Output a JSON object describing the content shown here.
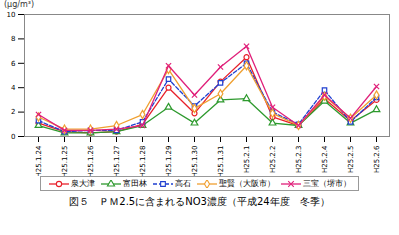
{
  "chart_data": {
    "type": "line",
    "title": "図５　ＰＭ2.5に含まれるNO3濃度（平成24年度　冬季）",
    "y_label": "(μg/m³)",
    "categories": [
      "H25.1.24",
      "H25.1.25",
      "H25.1.26",
      "H25.1.27",
      "H25.1.28",
      "H25.1.29",
      "H25.1.30",
      "H25.1.31",
      "H25.2.1",
      "H25.2.2",
      "H25.2.3",
      "H25.2.4",
      "H25.2.5",
      "H25.2.6"
    ],
    "series": [
      {
        "name": "泉大津",
        "color": "#e8202a",
        "marker": "circle",
        "line_style": "solid",
        "values": [
          1.1,
          0.4,
          0.3,
          0.4,
          1.0,
          4.0,
          1.9,
          4.5,
          6.5,
          1.6,
          0.9,
          3.1,
          1.3,
          3.0
        ]
      },
      {
        "name": "富田林",
        "color": "#2e9a2e",
        "marker": "triangle",
        "line_style": "solid",
        "values": [
          0.9,
          0.3,
          0.3,
          0.4,
          0.9,
          2.4,
          1.1,
          3.0,
          3.1,
          1.1,
          0.9,
          2.9,
          1.1,
          2.2
        ]
      },
      {
        "name": "高石",
        "color": "#1f3fd0",
        "marker": "square",
        "line_style": "dashed",
        "values": [
          1.3,
          0.4,
          0.5,
          0.5,
          1.2,
          4.7,
          2.5,
          4.4,
          6.0,
          2.0,
          1.0,
          3.8,
          1.2,
          3.2
        ]
      },
      {
        "name": "聖賢（大阪市）",
        "color": "#f0a030",
        "marker": "diamond",
        "line_style": "solid",
        "values": [
          1.6,
          0.6,
          0.6,
          0.9,
          1.8,
          5.5,
          2.3,
          3.5,
          5.8,
          1.9,
          0.9,
          3.3,
          1.5,
          3.4
        ]
      },
      {
        "name": "三宝（堺市）",
        "color": "#e0207a",
        "marker": "times",
        "line_style": "solid",
        "values": [
          1.8,
          0.5,
          0.5,
          0.6,
          0.9,
          5.8,
          3.4,
          5.7,
          7.4,
          2.4,
          0.9,
          3.4,
          1.5,
          4.1
        ]
      }
    ],
    "ylim": [
      0,
      10
    ],
    "yticks": [
      0,
      2,
      4,
      6,
      8,
      10
    ],
    "grid": false,
    "legend": "bottom"
  }
}
